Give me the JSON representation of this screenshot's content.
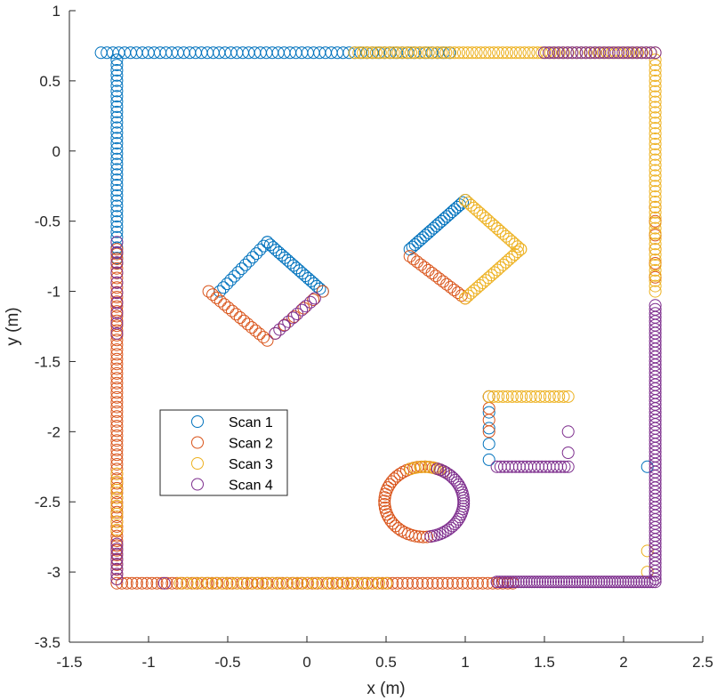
{
  "chart_data": {
    "type": "scatter",
    "xlabel": "x (m)",
    "ylabel": "y (m)",
    "xlim": [
      -1.5,
      2.5
    ],
    "ylim": [
      -3.5,
      1
    ],
    "xticks": [
      "-1.5",
      "-1",
      "-0.5",
      "0",
      "0.5",
      "1",
      "1.5",
      "2",
      "2.5"
    ],
    "yticks": [
      "1",
      "0.5",
      "0",
      "-0.5",
      "-1",
      "-1.5",
      "-2",
      "-2.5",
      "-3",
      "-3.5"
    ],
    "grid": false,
    "legend_position": "left-middle",
    "marker": "open-circle",
    "series": [
      {
        "name": "Scan 1",
        "color": "#0072BD",
        "segments": [
          {
            "from": [
              -1.3,
              0.7
            ],
            "to": [
              0.9,
              0.7
            ],
            "n": 60
          },
          {
            "from": [
              -1.2,
              0.65
            ],
            "to": [
              -1.2,
              -0.8
            ],
            "n": 40
          },
          {
            "from": [
              -0.55,
              -1.0
            ],
            "to": [
              -0.25,
              -0.65
            ],
            "n": 14
          },
          {
            "from": [
              -0.25,
              -0.65
            ],
            "to": [
              0.1,
              -1.0
            ],
            "n": 20
          },
          {
            "from": [
              0.65,
              -0.7
            ],
            "to": [
              1.0,
              -0.35
            ],
            "n": 22
          },
          {
            "from": [
              1.15,
              -1.75
            ],
            "to": [
              1.15,
              -2.2
            ],
            "n": 5
          },
          {
            "from": [
              2.15,
              -2.25
            ],
            "to": [
              2.15,
              -2.25
            ],
            "n": 1
          }
        ]
      },
      {
        "name": "Scan 2",
        "color": "#D95319",
        "segments": [
          {
            "from": [
              -1.2,
              -0.7
            ],
            "to": [
              -1.2,
              -3.05
            ],
            "n": 70
          },
          {
            "from": [
              -1.2,
              -3.08
            ],
            "to": [
              1.3,
              -3.08
            ],
            "n": 80
          },
          {
            "from": [
              -0.62,
              -1.0
            ],
            "to": [
              -0.25,
              -1.35
            ],
            "n": 16
          },
          {
            "from": [
              0.1,
              -1.0
            ],
            "to": [
              -0.2,
              -1.3
            ],
            "n": 6
          },
          {
            "from": [
              0.65,
              -0.75
            ],
            "to": [
              1.0,
              -1.05
            ],
            "n": 16
          },
          {
            "from": [
              1.15,
              -1.75
            ],
            "to": [
              1.15,
              -2.0
            ],
            "n": 4
          },
          {
            "from": [
              2.2,
              -0.4
            ],
            "to": [
              2.2,
              -0.9
            ],
            "n": 6
          }
        ],
        "arcs": [
          {
            "center": [
              0.74,
              -2.5
            ],
            "radius": 0.25,
            "start_deg": 60,
            "end_deg": 280,
            "n": 40
          }
        ]
      },
      {
        "name": "Scan 3",
        "color": "#EDB120",
        "segments": [
          {
            "from": [
              0.3,
              0.7
            ],
            "to": [
              2.2,
              0.7
            ],
            "n": 70
          },
          {
            "from": [
              2.2,
              0.65
            ],
            "to": [
              2.2,
              -1.0
            ],
            "n": 45
          },
          {
            "from": [
              1.0,
              -0.35
            ],
            "to": [
              1.35,
              -0.7
            ],
            "n": 20
          },
          {
            "from": [
              1.35,
              -0.7
            ],
            "to": [
              1.0,
              -1.05
            ],
            "n": 20
          },
          {
            "from": [
              1.15,
              -1.75
            ],
            "to": [
              1.65,
              -1.75
            ],
            "n": 18
          },
          {
            "from": [
              -1.2,
              -2.3
            ],
            "to": [
              -1.2,
              -2.7
            ],
            "n": 8
          },
          {
            "from": [
              -0.8,
              -3.08
            ],
            "to": [
              0.5,
              -3.08
            ],
            "n": 30
          },
          {
            "from": [
              2.15,
              -3.0
            ],
            "to": [
              2.15,
              -2.85
            ],
            "n": 2
          }
        ],
        "arcs": [
          {
            "center": [
              0.74,
              -2.5
            ],
            "radius": 0.25,
            "start_deg": 60,
            "end_deg": 110,
            "n": 8
          }
        ]
      },
      {
        "name": "Scan 4",
        "color": "#7E2F8E",
        "segments": [
          {
            "from": [
              1.5,
              0.7
            ],
            "to": [
              2.2,
              0.7
            ],
            "n": 25
          },
          {
            "from": [
              2.2,
              -1.1
            ],
            "to": [
              2.2,
              -3.05
            ],
            "n": 70
          },
          {
            "from": [
              1.2,
              -3.07
            ],
            "to": [
              2.2,
              -3.07
            ],
            "n": 60
          },
          {
            "from": [
              -1.2,
              -0.65
            ],
            "to": [
              -1.2,
              -1.3
            ],
            "n": 10
          },
          {
            "from": [
              -1.2,
              -2.8
            ],
            "to": [
              -1.2,
              -3.05
            ],
            "n": 8
          },
          {
            "from": [
              0.05,
              -1.05
            ],
            "to": [
              -0.2,
              -1.3
            ],
            "n": 10
          },
          {
            "from": [
              1.2,
              -2.25
            ],
            "to": [
              1.65,
              -2.25
            ],
            "n": 20
          },
          {
            "from": [
              1.65,
              -2.0
            ],
            "to": [
              1.65,
              -2.15
            ],
            "n": 2
          },
          {
            "from": [
              -0.9,
              -3.08
            ],
            "to": [
              -0.9,
              -3.08
            ],
            "n": 1
          }
        ],
        "arcs": [
          {
            "center": [
              0.74,
              -2.5
            ],
            "radius": 0.25,
            "start_deg": -80,
            "end_deg": 70,
            "n": 34
          }
        ]
      }
    ]
  }
}
